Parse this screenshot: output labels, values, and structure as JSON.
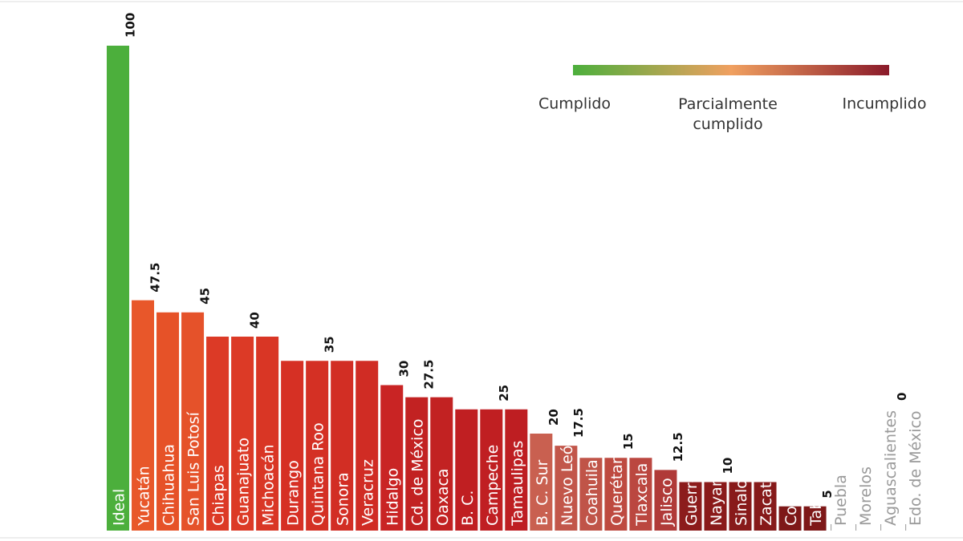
{
  "chart_data": {
    "type": "bar",
    "categories": [
      "Ideal",
      "Yucatán",
      "Chihuahua",
      "San Luis Potosí",
      "Chiapas",
      "Guanajuato",
      "Michoacán",
      "Durango",
      "Quintana Roo",
      "Sonora",
      "Veracruz",
      "Hidalgo",
      "Cd. de México",
      "Oaxaca",
      "B. C.",
      "Campeche",
      "Tamaulipas",
      "B. C. Sur",
      "Nuevo León",
      "Coahuila",
      "Querétaro",
      "Tlaxcala",
      "Jalisco",
      "Guerrero",
      "Nayarit",
      "Sinaloa",
      "Zacatecas",
      "Colima",
      "Tabasco",
      "Puebla",
      "Morelos",
      "Aguascalientes",
      "Edo. de México"
    ],
    "values": [
      100,
      47.5,
      45,
      45,
      40,
      40,
      40,
      35,
      35,
      35,
      35,
      30,
      27.5,
      27.5,
      25,
      25,
      25,
      20,
      17.5,
      15,
      15,
      15,
      12.5,
      10,
      10,
      10,
      10,
      5,
      5,
      0,
      0,
      0,
      0
    ],
    "data_labels": [
      100,
      47.5,
      null,
      45,
      null,
      40,
      null,
      null,
      35,
      null,
      null,
      30,
      27.5,
      null,
      null,
      25,
      null,
      20,
      17.5,
      null,
      15,
      null,
      12.5,
      null,
      10,
      null,
      null,
      null,
      5,
      null,
      null,
      0,
      null
    ],
    "colors": [
      "#4caf3c",
      "#e8572a",
      "#e65228",
      "#e5522a",
      "#dc3a26",
      "#dc3a26",
      "#d93625",
      "#d63024",
      "#d43024",
      "#d22e24",
      "#d02c24",
      "#c92424",
      "#c22222",
      "#c22222",
      "#c01f22",
      "#c01f22",
      "#be1e22",
      "#c96050",
      "#c2564a",
      "#c05448",
      "#be4a40",
      "#bb4740",
      "#b03a38",
      "#8c1c1c",
      "#8a1a1a",
      "#881a1a",
      "#861a1a",
      "#7e1818",
      "#7e1818",
      "#bbbbbb",
      "#bbbbbb",
      "#bbbbbb",
      "#bbbbbb"
    ],
    "ylim": [
      0,
      100
    ],
    "legend": {
      "labels": [
        "Cumplido",
        "Parcialmente cumplido",
        "Incumplido"
      ],
      "colors": [
        "#4caf3c",
        "#f0a060",
        "#8a1a2a"
      ]
    }
  }
}
